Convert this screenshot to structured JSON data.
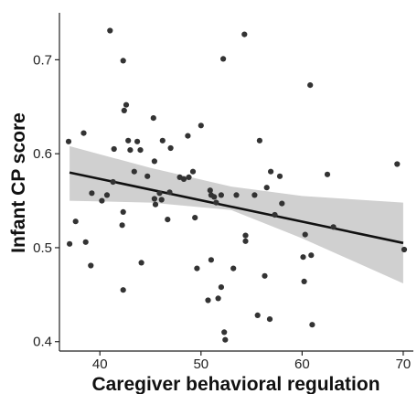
{
  "chart_data": {
    "type": "scatter",
    "title": "",
    "xlabel": "Caregiver behavioral regulation",
    "ylabel": "Infant CP score",
    "xlim": [
      36,
      71
    ],
    "ylim": [
      0.39,
      0.75
    ],
    "x_ticks": [
      40,
      50,
      60,
      70
    ],
    "y_ticks": [
      0.4,
      0.5,
      0.6,
      0.7
    ],
    "grid": false,
    "legend": "none",
    "colors": {
      "points": "#333333",
      "fit_line": "#111111",
      "confidence_band": "#d0d0d0"
    },
    "fit_line": {
      "x": [
        37,
        70
      ],
      "y": [
        0.58,
        0.505
      ]
    },
    "confidence_band": {
      "x": [
        37,
        45,
        53,
        60,
        70
      ],
      "upper": [
        0.608,
        0.585,
        0.565,
        0.555,
        0.548
      ],
      "lower": [
        0.55,
        0.548,
        0.54,
        0.51,
        0.462
      ]
    },
    "points": [
      {
        "x": 36.9,
        "y": 0.613
      },
      {
        "x": 37.0,
        "y": 0.504
      },
      {
        "x": 37.6,
        "y": 0.528
      },
      {
        "x": 38.4,
        "y": 0.622
      },
      {
        "x": 38.6,
        "y": 0.506
      },
      {
        "x": 39.1,
        "y": 0.481
      },
      {
        "x": 39.2,
        "y": 0.558
      },
      {
        "x": 40.2,
        "y": 0.55
      },
      {
        "x": 40.7,
        "y": 0.556
      },
      {
        "x": 41.0,
        "y": 0.731
      },
      {
        "x": 41.3,
        "y": 0.57
      },
      {
        "x": 41.4,
        "y": 0.605
      },
      {
        "x": 42.2,
        "y": 0.524
      },
      {
        "x": 42.3,
        "y": 0.455
      },
      {
        "x": 42.3,
        "y": 0.538
      },
      {
        "x": 42.3,
        "y": 0.699
      },
      {
        "x": 42.4,
        "y": 0.646
      },
      {
        "x": 42.6,
        "y": 0.652
      },
      {
        "x": 42.8,
        "y": 0.614
      },
      {
        "x": 43.0,
        "y": 0.604
      },
      {
        "x": 43.4,
        "y": 0.581
      },
      {
        "x": 43.7,
        "y": 0.613
      },
      {
        "x": 44.0,
        "y": 0.604
      },
      {
        "x": 44.1,
        "y": 0.484
      },
      {
        "x": 44.7,
        "y": 0.576
      },
      {
        "x": 45.3,
        "y": 0.638
      },
      {
        "x": 45.4,
        "y": 0.592
      },
      {
        "x": 45.4,
        "y": 0.552
      },
      {
        "x": 45.5,
        "y": 0.546
      },
      {
        "x": 45.9,
        "y": 0.558
      },
      {
        "x": 46.1,
        "y": 0.551
      },
      {
        "x": 46.2,
        "y": 0.614
      },
      {
        "x": 46.7,
        "y": 0.53
      },
      {
        "x": 46.9,
        "y": 0.559
      },
      {
        "x": 47.0,
        "y": 0.606
      },
      {
        "x": 47.9,
        "y": 0.575
      },
      {
        "x": 48.3,
        "y": 0.573
      },
      {
        "x": 48.7,
        "y": 0.619
      },
      {
        "x": 48.8,
        "y": 0.575
      },
      {
        "x": 49.2,
        "y": 0.581
      },
      {
        "x": 49.4,
        "y": 0.532
      },
      {
        "x": 49.6,
        "y": 0.478
      },
      {
        "x": 50.0,
        "y": 0.63
      },
      {
        "x": 50.7,
        "y": 0.444
      },
      {
        "x": 50.9,
        "y": 0.561
      },
      {
        "x": 51.0,
        "y": 0.487
      },
      {
        "x": 51.0,
        "y": 0.556
      },
      {
        "x": 51.3,
        "y": 0.554
      },
      {
        "x": 51.5,
        "y": 0.548
      },
      {
        "x": 51.7,
        "y": 0.446
      },
      {
        "x": 52.0,
        "y": 0.458
      },
      {
        "x": 52.0,
        "y": 0.556
      },
      {
        "x": 52.2,
        "y": 0.701
      },
      {
        "x": 52.3,
        "y": 0.41
      },
      {
        "x": 52.4,
        "y": 0.402
      },
      {
        "x": 53.2,
        "y": 0.478
      },
      {
        "x": 53.5,
        "y": 0.556
      },
      {
        "x": 54.3,
        "y": 0.727
      },
      {
        "x": 54.4,
        "y": 0.513
      },
      {
        "x": 54.4,
        "y": 0.507
      },
      {
        "x": 55.3,
        "y": 0.556
      },
      {
        "x": 55.6,
        "y": 0.428
      },
      {
        "x": 55.8,
        "y": 0.614
      },
      {
        "x": 56.3,
        "y": 0.47
      },
      {
        "x": 56.5,
        "y": 0.564
      },
      {
        "x": 56.8,
        "y": 0.424
      },
      {
        "x": 56.9,
        "y": 0.581
      },
      {
        "x": 57.3,
        "y": 0.535
      },
      {
        "x": 57.8,
        "y": 0.576
      },
      {
        "x": 58.0,
        "y": 0.547
      },
      {
        "x": 60.1,
        "y": 0.49
      },
      {
        "x": 60.2,
        "y": 0.464
      },
      {
        "x": 60.3,
        "y": 0.514
      },
      {
        "x": 60.8,
        "y": 0.673
      },
      {
        "x": 60.9,
        "y": 0.492
      },
      {
        "x": 61.0,
        "y": 0.418
      },
      {
        "x": 62.5,
        "y": 0.578
      },
      {
        "x": 63.1,
        "y": 0.522
      },
      {
        "x": 69.4,
        "y": 0.589
      },
      {
        "x": 70.1,
        "y": 0.498
      }
    ]
  }
}
